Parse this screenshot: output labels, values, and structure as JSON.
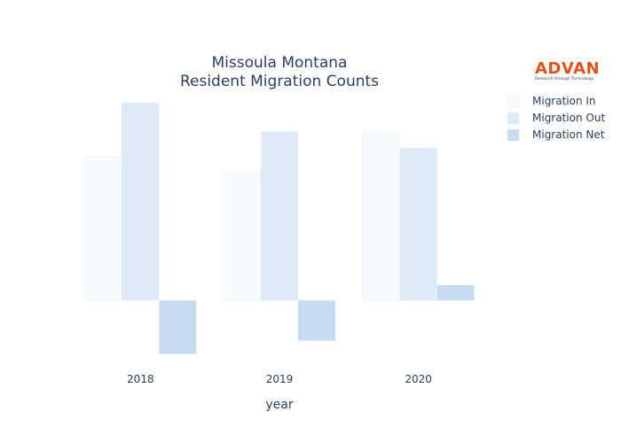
{
  "chart_data": {
    "type": "bar",
    "title_lines": [
      "Missoula Montana",
      "Resident Migration Counts"
    ],
    "xlabel": "year",
    "ylabel": "",
    "categories": [
      "2018",
      "2019",
      "2020"
    ],
    "series": [
      {
        "name": "Migration In",
        "values": [
          1500,
          1340,
          1750
        ],
        "color": "#f7fbff"
      },
      {
        "name": "Migration Out",
        "values": [
          2060,
          1760,
          1590
        ],
        "color": "#deebf7"
      },
      {
        "name": "Migration Net",
        "values": [
          -560,
          -420,
          160
        ],
        "color": "#c6dbef"
      }
    ],
    "ylim": [
      -600,
      2060
    ],
    "grid": false,
    "legend": "top-right"
  },
  "logo": {
    "name": "ADVAN",
    "tagline": "Research through Technology"
  }
}
